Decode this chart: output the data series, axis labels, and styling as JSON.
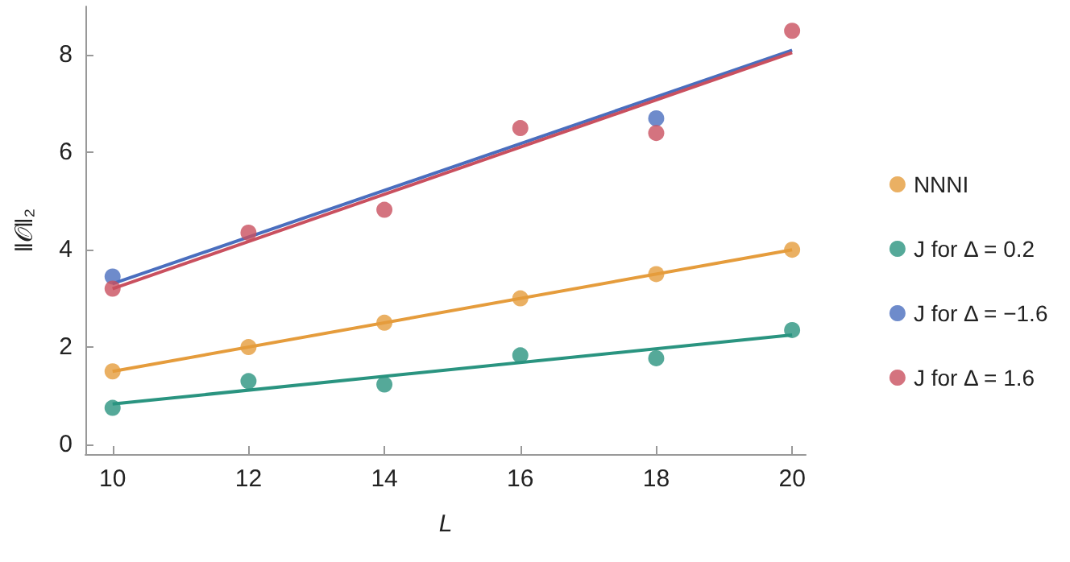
{
  "chart_data": {
    "type": "scatter",
    "xlabel": "L",
    "ylabel": "‖𝒪‖₂",
    "xlim": [
      9.6,
      20.2
    ],
    "xticks": [
      10,
      12,
      14,
      16,
      18,
      20
    ],
    "ylim": [
      -0.2,
      9
    ],
    "yticks": [
      0,
      2,
      4,
      6,
      8
    ],
    "grid": false,
    "legend": "right",
    "marker": "circle",
    "series": [
      {
        "name": "NNNI",
        "color": "#e59c3c",
        "x": [
          10,
          12,
          14,
          16,
          18,
          20
        ],
        "values": [
          1.5,
          2.0,
          2.5,
          3.0,
          3.5,
          4.0
        ]
      },
      {
        "name": "J for Δ = 0.2",
        "color": "#2a9480",
        "x": [
          10,
          12,
          14,
          16,
          18,
          20
        ],
        "values": [
          0.75,
          1.3,
          1.23,
          1.83,
          1.77,
          2.35
        ]
      },
      {
        "name": "J for Δ = −1.6",
        "color": "#4a6ebe",
        "x": [
          10,
          18
        ],
        "values": [
          3.45,
          6.7
        ]
      },
      {
        "name": "J for Δ = 1.6",
        "color": "#c9505f",
        "x": [
          10,
          12,
          14,
          16,
          18,
          20
        ],
        "values": [
          3.2,
          4.35,
          4.82,
          6.5,
          6.4,
          8.5
        ]
      },
      {
        "type": "line",
        "marker": "none",
        "color": "#e59c3c",
        "x": [
          10,
          20
        ],
        "values": [
          1.5,
          4.0
        ]
      },
      {
        "type": "line",
        "marker": "none",
        "color": "#2a9480",
        "x": [
          10,
          20
        ],
        "values": [
          0.83,
          2.25
        ]
      },
      {
        "type": "line",
        "marker": "none",
        "color": "#4a6ebe",
        "x": [
          10,
          20
        ],
        "values": [
          3.3,
          8.1
        ]
      },
      {
        "type": "line",
        "marker": "none",
        "color": "#c9505f",
        "x": [
          10,
          20
        ],
        "values": [
          3.2,
          8.05
        ]
      }
    ]
  }
}
